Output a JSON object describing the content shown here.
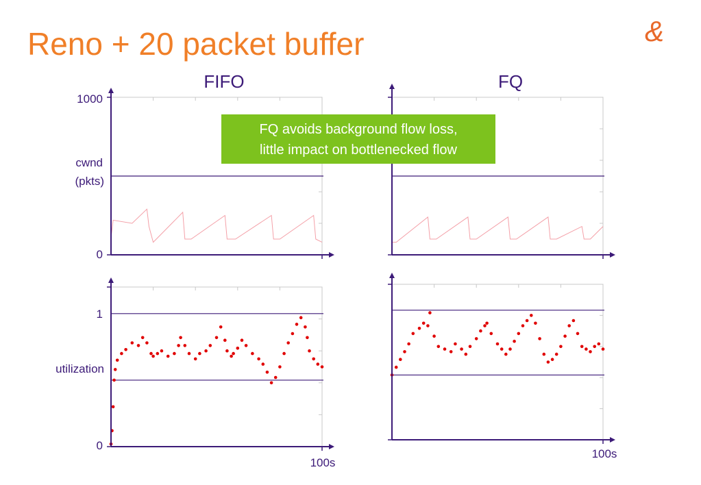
{
  "slide": {
    "title": "Reno + 20 packet buffer",
    "callout": [
      "FQ avoids background flow loss,",
      "little impact on bottlenecked flow"
    ],
    "colors": {
      "title": "#f07f28",
      "axis": "#3c1a78",
      "reference_line": "#3c1a78",
      "grid": "#c8c8c8",
      "cwnd_trace": "#f4a0a8",
      "utilization_points": "#e00000",
      "callout_bg": "#7dc21e",
      "callout_text": "#ffffff",
      "logo": "#e8692a"
    },
    "logo_icon": "ampersand-logo"
  },
  "column_labels": {
    "left": "FIFO",
    "right": "FQ"
  },
  "axis_text": {
    "cwnd_top": "1000",
    "cwnd_label_1": "cwnd",
    "cwnd_label_2": "(pkts)",
    "cwnd_zero": "0",
    "util_one": "1",
    "util_label": "utilization",
    "util_zero": "0",
    "time_end_left": "100s",
    "time_end_right": "100s"
  },
  "chart_data": [
    {
      "type": "line",
      "panel": "FIFO cwnd",
      "xlabel": "",
      "ylabel": "cwnd (pkts)",
      "xlim": [
        0,
        100
      ],
      "ylim": [
        0,
        1000
      ],
      "reference_line": 500,
      "series": [
        {
          "x": [
            0,
            1,
            10,
            17,
            18,
            20,
            34,
            35,
            38,
            54,
            55,
            59,
            76,
            77,
            80,
            96,
            97,
            100
          ],
          "y": [
            110,
            220,
            200,
            290,
            180,
            80,
            270,
            100,
            100,
            250,
            100,
            100,
            250,
            100,
            100,
            250,
            100,
            80
          ]
        }
      ]
    },
    {
      "type": "line",
      "panel": "FQ cwnd",
      "xlabel": "",
      "ylabel": "",
      "xlim": [
        0,
        100
      ],
      "ylim": [
        0,
        1000
      ],
      "reference_line": 500,
      "series": [
        {
          "x": [
            0,
            2,
            17,
            18,
            21,
            36,
            37,
            40,
            55,
            56,
            59,
            74,
            75,
            78,
            90,
            91,
            94,
            100
          ],
          "y": [
            80,
            80,
            240,
            100,
            100,
            240,
            100,
            100,
            240,
            100,
            100,
            240,
            100,
            100,
            180,
            100,
            100,
            180
          ]
        }
      ]
    },
    {
      "type": "scatter",
      "panel": "FIFO utilization",
      "xlabel": "",
      "ylabel": "utilization",
      "xlim": [
        0,
        100
      ],
      "ylim": [
        0,
        1.2
      ],
      "reference_lines": [
        1.0,
        0.5
      ],
      "series": [
        {
          "x": [
            0,
            0.5,
            1,
            1.5,
            2,
            3,
            5,
            7,
            10,
            13,
            15,
            17,
            19,
            20,
            22,
            24,
            27,
            30,
            32,
            33,
            35,
            37,
            40,
            42,
            45,
            47,
            50,
            52,
            54,
            55,
            57,
            58,
            60,
            62,
            64,
            67,
            70,
            72,
            74,
            76,
            78,
            80,
            82,
            84,
            86,
            88,
            90,
            92,
            93,
            94,
            96,
            98,
            100
          ],
          "y": [
            0.02,
            0.12,
            0.3,
            0.5,
            0.58,
            0.65,
            0.7,
            0.73,
            0.78,
            0.76,
            0.82,
            0.78,
            0.7,
            0.68,
            0.7,
            0.72,
            0.68,
            0.7,
            0.76,
            0.82,
            0.76,
            0.7,
            0.66,
            0.7,
            0.72,
            0.76,
            0.82,
            0.9,
            0.8,
            0.72,
            0.68,
            0.7,
            0.74,
            0.8,
            0.76,
            0.7,
            0.66,
            0.62,
            0.56,
            0.48,
            0.52,
            0.6,
            0.7,
            0.78,
            0.85,
            0.92,
            0.97,
            0.9,
            0.82,
            0.72,
            0.66,
            0.62,
            0.6
          ]
        }
      ]
    },
    {
      "type": "scatter",
      "panel": "FQ utilization",
      "xlabel": "",
      "ylabel": "",
      "xlim": [
        0,
        100
      ],
      "ylim": [
        0,
        1.2
      ],
      "reference_lines": [
        1.0,
        0.5
      ],
      "series": [
        {
          "x": [
            0,
            2,
            4,
            6,
            8,
            10,
            13,
            15,
            17,
            18,
            20,
            22,
            25,
            28,
            30,
            33,
            35,
            37,
            40,
            42,
            44,
            45,
            47,
            50,
            52,
            54,
            56,
            58,
            60,
            62,
            64,
            66,
            68,
            70,
            72,
            74,
            76,
            78,
            80,
            82,
            84,
            86,
            88,
            90,
            92,
            94,
            96,
            98,
            100
          ],
          "y": [
            0.5,
            0.56,
            0.62,
            0.68,
            0.74,
            0.82,
            0.86,
            0.9,
            0.88,
            0.98,
            0.8,
            0.72,
            0.7,
            0.68,
            0.74,
            0.7,
            0.66,
            0.72,
            0.78,
            0.84,
            0.88,
            0.9,
            0.82,
            0.74,
            0.7,
            0.66,
            0.7,
            0.76,
            0.82,
            0.88,
            0.92,
            0.96,
            0.9,
            0.78,
            0.66,
            0.6,
            0.62,
            0.66,
            0.72,
            0.8,
            0.88,
            0.92,
            0.82,
            0.72,
            0.7,
            0.68,
            0.72,
            0.74,
            0.7
          ]
        }
      ]
    }
  ]
}
